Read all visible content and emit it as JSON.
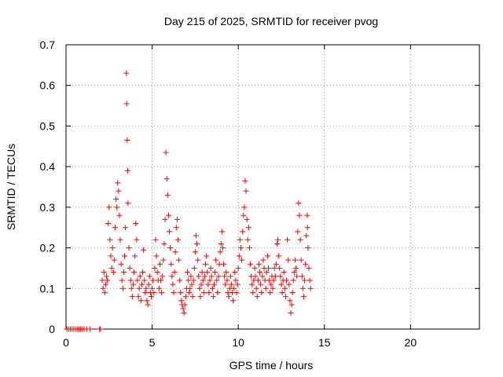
{
  "chart_data": {
    "type": "scatter",
    "title": "Day 215 of 2025, SRMTID for receiver pvog",
    "xlabel": "GPS time / hours",
    "ylabel": "SRMTID / TECUs",
    "xlim": [
      0,
      24
    ],
    "ylim": [
      0,
      0.7
    ],
    "xticks": [
      0,
      5,
      10,
      15,
      20
    ],
    "yticks": [
      0,
      0.1,
      0.2,
      0.3,
      0.4,
      0.5,
      0.6,
      0.7
    ],
    "xtick_labels": [
      "0",
      "5",
      "10",
      "15",
      "20"
    ],
    "ytick_labels": [
      "0",
      "0.1",
      "0.2",
      "0.3",
      "0.4",
      "0.5",
      "0.6",
      "0.7"
    ],
    "grid": true,
    "marker": "+",
    "color": "#ff0000",
    "series": [
      {
        "name": "pvog",
        "points": [
          [
            0.05,
            0
          ],
          [
            0.15,
            0
          ],
          [
            0.25,
            0
          ],
          [
            0.35,
            0
          ],
          [
            0.45,
            0
          ],
          [
            0.55,
            0
          ],
          [
            0.65,
            0
          ],
          [
            0.75,
            0
          ],
          [
            0.85,
            0
          ],
          [
            0.95,
            0
          ],
          [
            1.05,
            0
          ],
          [
            1.2,
            0
          ],
          [
            1.4,
            0
          ],
          [
            1.95,
            0
          ],
          [
            2.0,
            0
          ],
          [
            2.1,
            0.12
          ],
          [
            2.15,
            0.1
          ],
          [
            2.2,
            0.14
          ],
          [
            2.25,
            0.09
          ],
          [
            2.3,
            0.11
          ],
          [
            2.35,
            0.13
          ],
          [
            2.4,
            0.12
          ],
          [
            2.45,
            0.26
          ],
          [
            2.5,
            0.3
          ],
          [
            2.55,
            0.22
          ],
          [
            2.6,
            0.18
          ],
          [
            2.65,
            0.15
          ],
          [
            2.7,
            0.2
          ],
          [
            2.75,
            0.14
          ],
          [
            2.8,
            0.17
          ],
          [
            2.85,
            0.25
          ],
          [
            2.9,
            0.32
          ],
          [
            2.95,
            0.3
          ],
          [
            3.0,
            0.36
          ],
          [
            3.05,
            0.34
          ],
          [
            3.1,
            0.28
          ],
          [
            3.15,
            0.22
          ],
          [
            3.2,
            0.16
          ],
          [
            3.25,
            0.12
          ],
          [
            3.3,
            0.1
          ],
          [
            3.35,
            0.14
          ],
          [
            3.4,
            0.18
          ],
          [
            3.45,
            0.25
          ],
          [
            3.5,
            0.63
          ],
          [
            3.52,
            0.555
          ],
          [
            3.55,
            0.465
          ],
          [
            3.58,
            0.39
          ],
          [
            3.6,
            0.31
          ],
          [
            3.65,
            0.2
          ],
          [
            3.7,
            0.15
          ],
          [
            3.75,
            0.12
          ],
          [
            3.8,
            0.1
          ],
          [
            3.85,
            0.08
          ],
          [
            3.9,
            0.11
          ],
          [
            3.95,
            0.14
          ],
          [
            4.0,
            0.18
          ],
          [
            4.05,
            0.26
          ],
          [
            4.1,
            0.22
          ],
          [
            4.15,
            0.12
          ],
          [
            4.2,
            0.08
          ],
          [
            4.25,
            0.1
          ],
          [
            4.3,
            0.13
          ],
          [
            4.35,
            0.07
          ],
          [
            4.4,
            0.11
          ],
          [
            4.45,
            0.14
          ],
          [
            4.5,
            0.195
          ],
          [
            4.55,
            0.12
          ],
          [
            4.6,
            0.09
          ],
          [
            4.65,
            0.1
          ],
          [
            4.7,
            0.07
          ],
          [
            4.75,
            0.06
          ],
          [
            4.8,
            0.11
          ],
          [
            4.85,
            0.13
          ],
          [
            4.9,
            0.09
          ],
          [
            4.95,
            0.08
          ],
          [
            5.0,
            0.1
          ],
          [
            5.05,
            0.12
          ],
          [
            5.1,
            0.09
          ],
          [
            5.15,
            0.15
          ],
          [
            5.2,
            0.22
          ],
          [
            5.25,
            0.18
          ],
          [
            5.3,
            0.14
          ],
          [
            5.35,
            0.12
          ],
          [
            5.4,
            0.1
          ],
          [
            5.45,
            0.16
          ],
          [
            5.5,
            0.12
          ],
          [
            5.55,
            0.09
          ],
          [
            5.6,
            0.13
          ],
          [
            5.65,
            0.17
          ],
          [
            5.7,
            0.21
          ],
          [
            5.75,
            0.27
          ],
          [
            5.8,
            0.435
          ],
          [
            5.85,
            0.37
          ],
          [
            5.9,
            0.33
          ],
          [
            5.95,
            0.28
          ],
          [
            6.0,
            0.24
          ],
          [
            6.05,
            0.2
          ],
          [
            6.1,
            0.16
          ],
          [
            6.15,
            0.13
          ],
          [
            6.2,
            0.11
          ],
          [
            6.25,
            0.09
          ],
          [
            6.3,
            0.14
          ],
          [
            6.35,
            0.19
          ],
          [
            6.4,
            0.25
          ],
          [
            6.45,
            0.27
          ],
          [
            6.5,
            0.22
          ],
          [
            6.55,
            0.17
          ],
          [
            6.6,
            0.12
          ],
          [
            6.65,
            0.09
          ],
          [
            6.7,
            0.07
          ],
          [
            6.75,
            0.06
          ],
          [
            6.8,
            0.05
          ],
          [
            6.85,
            0.04
          ],
          [
            6.9,
            0.06
          ],
          [
            6.95,
            0.08
          ],
          [
            7.0,
            0.1
          ],
          [
            7.05,
            0.14
          ],
          [
            7.1,
            0.12
          ],
          [
            7.15,
            0.09
          ],
          [
            7.2,
            0.1
          ],
          [
            7.25,
            0.13
          ],
          [
            7.3,
            0.11
          ],
          [
            7.35,
            0.08
          ],
          [
            7.4,
            0.12
          ],
          [
            7.45,
            0.15
          ],
          [
            7.5,
            0.19
          ],
          [
            7.55,
            0.23
          ],
          [
            7.6,
            0.21
          ],
          [
            7.65,
            0.17
          ],
          [
            7.7,
            0.13
          ],
          [
            7.75,
            0.1
          ],
          [
            7.8,
            0.08
          ],
          [
            7.85,
            0.11
          ],
          [
            7.9,
            0.14
          ],
          [
            7.95,
            0.12
          ],
          [
            8.0,
            0.09
          ],
          [
            8.05,
            0.13
          ],
          [
            8.1,
            0.16
          ],
          [
            8.15,
            0.18
          ],
          [
            8.2,
            0.14
          ],
          [
            8.25,
            0.11
          ],
          [
            8.3,
            0.09
          ],
          [
            8.35,
            0.12
          ],
          [
            8.4,
            0.15
          ],
          [
            8.45,
            0.13
          ],
          [
            8.5,
            0.1
          ],
          [
            8.55,
            0.08
          ],
          [
            8.6,
            0.11
          ],
          [
            8.65,
            0.14
          ],
          [
            8.7,
            0.17
          ],
          [
            8.75,
            0.12
          ],
          [
            8.8,
            0.09
          ],
          [
            8.85,
            0.13
          ],
          [
            8.9,
            0.16
          ],
          [
            8.95,
            0.19
          ],
          [
            9.0,
            0.21
          ],
          [
            9.05,
            0.24
          ],
          [
            9.1,
            0.2
          ],
          [
            9.15,
            0.16
          ],
          [
            9.2,
            0.13
          ],
          [
            9.25,
            0.11
          ],
          [
            9.3,
            0.14
          ],
          [
            9.35,
            0.12
          ],
          [
            9.4,
            0.09
          ],
          [
            9.45,
            0.08
          ],
          [
            9.5,
            0.1
          ],
          [
            9.55,
            0.13
          ],
          [
            9.6,
            0.11
          ],
          [
            9.65,
            0.09
          ],
          [
            9.7,
            0.07
          ],
          [
            9.75,
            0.1
          ],
          [
            9.8,
            0.14
          ],
          [
            9.85,
            0.12
          ],
          [
            9.9,
            0.09
          ],
          [
            9.95,
            0.11
          ],
          [
            10.0,
            0.15
          ],
          [
            10.05,
            0.18
          ],
          [
            10.1,
            0.22
          ],
          [
            10.15,
            0.2
          ],
          [
            10.2,
            0.17
          ],
          [
            10.25,
            0.24
          ],
          [
            10.3,
            0.28
          ],
          [
            10.35,
            0.3
          ],
          [
            10.4,
            0.365
          ],
          [
            10.45,
            0.34
          ],
          [
            10.5,
            0.27
          ],
          [
            10.55,
            0.22
          ],
          [
            10.6,
            0.25
          ],
          [
            10.65,
            0.2
          ],
          [
            10.7,
            0.16
          ],
          [
            10.75,
            0.13
          ],
          [
            10.8,
            0.11
          ],
          [
            10.85,
            0.09
          ],
          [
            10.9,
            0.12
          ],
          [
            10.95,
            0.15
          ],
          [
            11.0,
            0.13
          ],
          [
            11.05,
            0.1
          ],
          [
            11.1,
            0.08
          ],
          [
            11.15,
            0.12
          ],
          [
            11.2,
            0.16
          ],
          [
            11.25,
            0.14
          ],
          [
            11.3,
            0.11
          ],
          [
            11.35,
            0.09
          ],
          [
            11.4,
            0.13
          ],
          [
            11.45,
            0.17
          ],
          [
            11.5,
            0.15
          ],
          [
            11.55,
            0.12
          ],
          [
            11.6,
            0.1
          ],
          [
            11.65,
            0.14
          ],
          [
            11.7,
            0.18
          ],
          [
            11.75,
            0.15
          ],
          [
            11.8,
            0.12
          ],
          [
            11.85,
            0.09
          ],
          [
            11.9,
            0.11
          ],
          [
            11.95,
            0.13
          ],
          [
            12.0,
            0.1
          ],
          [
            12.05,
            0.12
          ],
          [
            12.1,
            0.15
          ],
          [
            12.15,
            0.13
          ],
          [
            12.2,
            0.16
          ],
          [
            12.25,
            0.21
          ],
          [
            12.3,
            0.22
          ],
          [
            12.35,
            0.18
          ],
          [
            12.4,
            0.15
          ],
          [
            12.45,
            0.13
          ],
          [
            12.5,
            0.11
          ],
          [
            12.55,
            0.09
          ],
          [
            12.6,
            0.12
          ],
          [
            12.65,
            0.14
          ],
          [
            12.7,
            0.1
          ],
          [
            12.75,
            0.08
          ],
          [
            12.8,
            0.12
          ],
          [
            12.85,
            0.22
          ],
          [
            12.9,
            0.17
          ],
          [
            12.95,
            0.11
          ],
          [
            13.0,
            0.07
          ],
          [
            13.05,
            0.04
          ],
          [
            13.1,
            0.06
          ],
          [
            13.15,
            0.09
          ],
          [
            13.2,
            0.12
          ],
          [
            13.25,
            0.14
          ],
          [
            13.3,
            0.17
          ],
          [
            13.35,
            0.15
          ],
          [
            13.4,
            0.13
          ],
          [
            13.45,
            0.24
          ],
          [
            13.5,
            0.31
          ],
          [
            13.55,
            0.28
          ],
          [
            13.6,
            0.22
          ],
          [
            13.65,
            0.17
          ],
          [
            13.7,
            0.13
          ],
          [
            13.75,
            0.1
          ],
          [
            13.8,
            0.08
          ],
          [
            13.85,
            0.12
          ],
          [
            13.9,
            0.16
          ],
          [
            13.95,
            0.23
          ],
          [
            14.0,
            0.28
          ],
          [
            14.02,
            0.25
          ],
          [
            14.05,
            0.2
          ],
          [
            14.1,
            0.15
          ],
          [
            14.15,
            0.12
          ],
          [
            14.2,
            0.1
          ]
        ]
      }
    ]
  }
}
